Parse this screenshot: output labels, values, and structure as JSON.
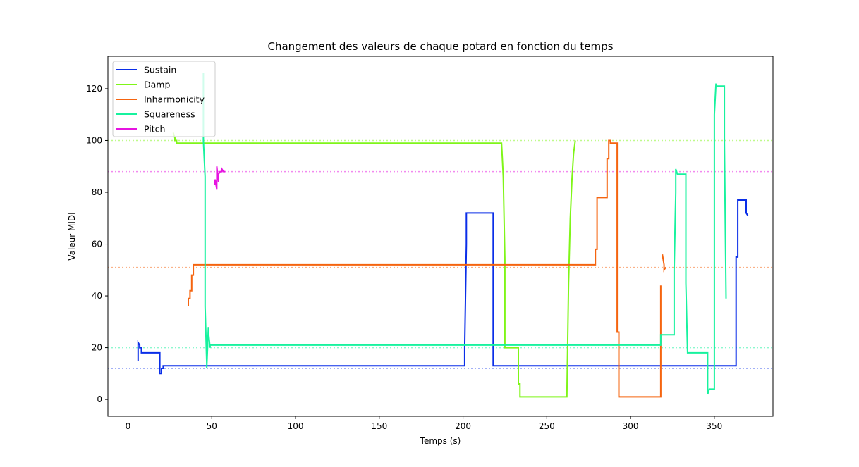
{
  "chart_data": {
    "type": "line",
    "title": "Changement des valeurs de chaque potard en fonction du temps",
    "xlabel": "Temps (s)",
    "ylabel": "Valeur MIDI",
    "xlim": [
      -12,
      385
    ],
    "ylim": [
      -6.5,
      132.5
    ],
    "xticks": [
      0,
      50,
      100,
      150,
      200,
      250,
      300,
      350
    ],
    "yticks": [
      0,
      20,
      40,
      60,
      80,
      100,
      120
    ],
    "grid": false,
    "legend_position": "top-left",
    "series": [
      {
        "name": "Sustain",
        "color": "#0a2ee8",
        "reference": 12,
        "x": [
          6,
          6,
          7,
          7,
          8,
          8,
          19,
          19,
          20,
          20,
          21,
          21,
          201,
          201,
          202,
          202,
          218,
          218,
          363,
          363,
          364,
          364,
          369,
          369,
          370
        ],
        "y": [
          15,
          22,
          21,
          20,
          20,
          18,
          18,
          10,
          10,
          12,
          12,
          13,
          13,
          20,
          60,
          72,
          72,
          13,
          13,
          55,
          55,
          77,
          77,
          72,
          71
        ]
      },
      {
        "name": "Damp",
        "color": "#7ff518",
        "reference": 100,
        "x": [
          27,
          28,
          28,
          29,
          29,
          223,
          224,
          225,
          225,
          233,
          233,
          234,
          234,
          262,
          263,
          264,
          265,
          266,
          267
        ],
        "y": [
          103,
          101,
          100,
          100,
          99,
          99,
          86,
          54,
          20,
          20,
          6,
          6,
          1,
          1,
          45,
          70,
          85,
          95,
          100
        ]
      },
      {
        "name": "Inharmonicity",
        "color": "#f5640f",
        "reference": 51,
        "x": [
          36,
          36,
          37,
          37,
          38,
          38,
          39,
          39,
          40,
          279,
          279,
          280,
          280,
          286,
          286,
          287,
          287,
          288,
          288,
          292,
          292,
          293,
          293,
          318,
          318,
          319,
          320,
          320,
          321
        ],
        "y": [
          36,
          39,
          39,
          42,
          42,
          48,
          48,
          52,
          52,
          52,
          58,
          58,
          78,
          78,
          93,
          93,
          100,
          100,
          99,
          99,
          26,
          26,
          1,
          1,
          44,
          56,
          52,
          50,
          51
        ],
        "split_after_index": 24
      },
      {
        "name": "Squareness",
        "color": "#17f29e",
        "reference": 20,
        "x": [
          45,
          45,
          46,
          46,
          47,
          47,
          48,
          48,
          49,
          49,
          318,
          318,
          319,
          319,
          326,
          326,
          327,
          327,
          328,
          328,
          333,
          333,
          334,
          334,
          346,
          346,
          347,
          347,
          350,
          350,
          351,
          351,
          356,
          356,
          357,
          357
        ],
        "y": [
          126,
          100,
          86,
          36,
          14,
          12,
          28,
          26,
          20,
          21,
          21,
          25,
          25,
          25,
          25,
          50,
          80,
          89,
          87,
          87,
          87,
          45,
          18,
          18,
          18,
          2,
          4,
          4,
          4,
          110,
          122,
          121,
          121,
          100,
          39,
          39
        ]
      },
      {
        "name": "Pitch",
        "color": "#e614e0",
        "reference": 88,
        "x": [
          52,
          52,
          53,
          53,
          54,
          54,
          55,
          56,
          56,
          57,
          57,
          58
        ],
        "y": [
          83,
          85,
          81,
          90,
          84,
          87,
          88,
          88,
          89,
          88,
          88,
          88
        ]
      }
    ]
  }
}
